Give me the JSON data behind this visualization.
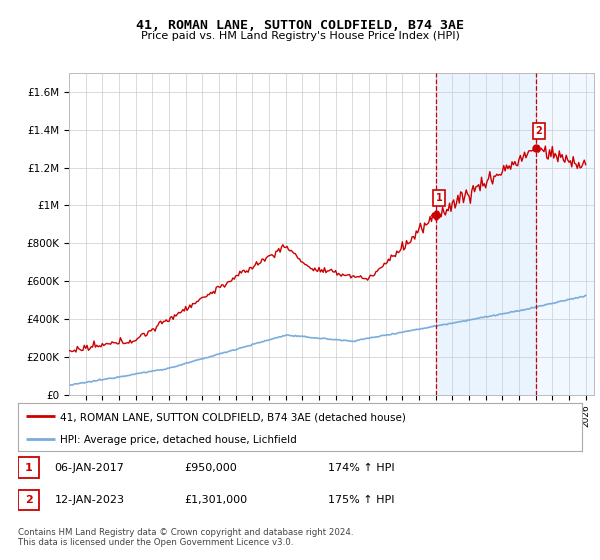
{
  "title": "41, ROMAN LANE, SUTTON COLDFIELD, B74 3AE",
  "subtitle": "Price paid vs. HM Land Registry's House Price Index (HPI)",
  "legend_line1": "41, ROMAN LANE, SUTTON COLDFIELD, B74 3AE (detached house)",
  "legend_line2": "HPI: Average price, detached house, Lichfield",
  "annotation1": {
    "label": "1",
    "date": "06-JAN-2017",
    "price": "£950,000",
    "hpi": "174% ↑ HPI"
  },
  "annotation2": {
    "label": "2",
    "date": "12-JAN-2023",
    "price": "£1,301,000",
    "hpi": "175% ↑ HPI"
  },
  "footer": "Contains HM Land Registry data © Crown copyright and database right 2024.\nThis data is licensed under the Open Government Licence v3.0.",
  "price_color": "#cc0000",
  "hpi_color": "#7aaddc",
  "vline_color": "#cc0000",
  "annotation_box_color": "#cc0000",
  "shade_color": "#ddeeff",
  "background_color": "#ffffff",
  "grid_color": "#cccccc",
  "ylim": [
    0,
    1700000
  ],
  "yticks": [
    0,
    200000,
    400000,
    600000,
    800000,
    1000000,
    1200000,
    1400000,
    1600000
  ],
  "ytick_labels": [
    "£0",
    "£200K",
    "£400K",
    "£600K",
    "£800K",
    "£1M",
    "£1.2M",
    "£1.4M",
    "£1.6M"
  ],
  "marker1_year": 2017.05,
  "marker1_value": 950000,
  "marker2_year": 2023.05,
  "marker2_value": 1301000,
  "xtick_start": 1996,
  "xtick_end": 2026
}
